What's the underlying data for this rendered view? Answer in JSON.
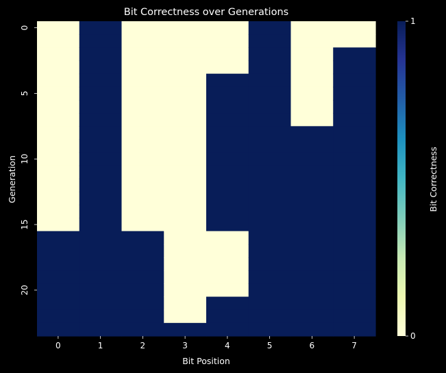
{
  "chart_data": {
    "type": "heatmap",
    "title": "Bit Correctness over Generations",
    "xlabel": "Bit Position",
    "ylabel": "Generation",
    "x_categories": [
      0,
      1,
      2,
      3,
      4,
      5,
      6,
      7
    ],
    "y_ticks": [
      "0",
      "5",
      "10",
      "15",
      "20"
    ],
    "y_tick_indices": [
      0,
      5,
      10,
      15,
      20
    ],
    "n_generations": 24,
    "bit_columns": [
      {
        "bit": 0,
        "correct_from_generation": 16
      },
      {
        "bit": 1,
        "correct_from_generation": 0
      },
      {
        "bit": 2,
        "correct_from_generation": 16
      },
      {
        "bit": 3,
        "correct_from_generation": 23
      },
      {
        "bit": 4,
        "correct_from_generation": 4,
        "incorrect_ranges": [
          [
            16,
            20
          ]
        ]
      },
      {
        "bit": 5,
        "correct_from_generation": 0
      },
      {
        "bit": 6,
        "correct_from_generation": 8
      },
      {
        "bit": 7,
        "correct_from_generation": 2
      }
    ],
    "colorbar": {
      "label": "Bit Correctness",
      "min": 0,
      "max": 1,
      "ticks": [
        "0",
        "1"
      ],
      "colormap": "YlGnBu",
      "low_color": "#ffffd9",
      "high_color": "#081d58"
    },
    "grid": false
  }
}
